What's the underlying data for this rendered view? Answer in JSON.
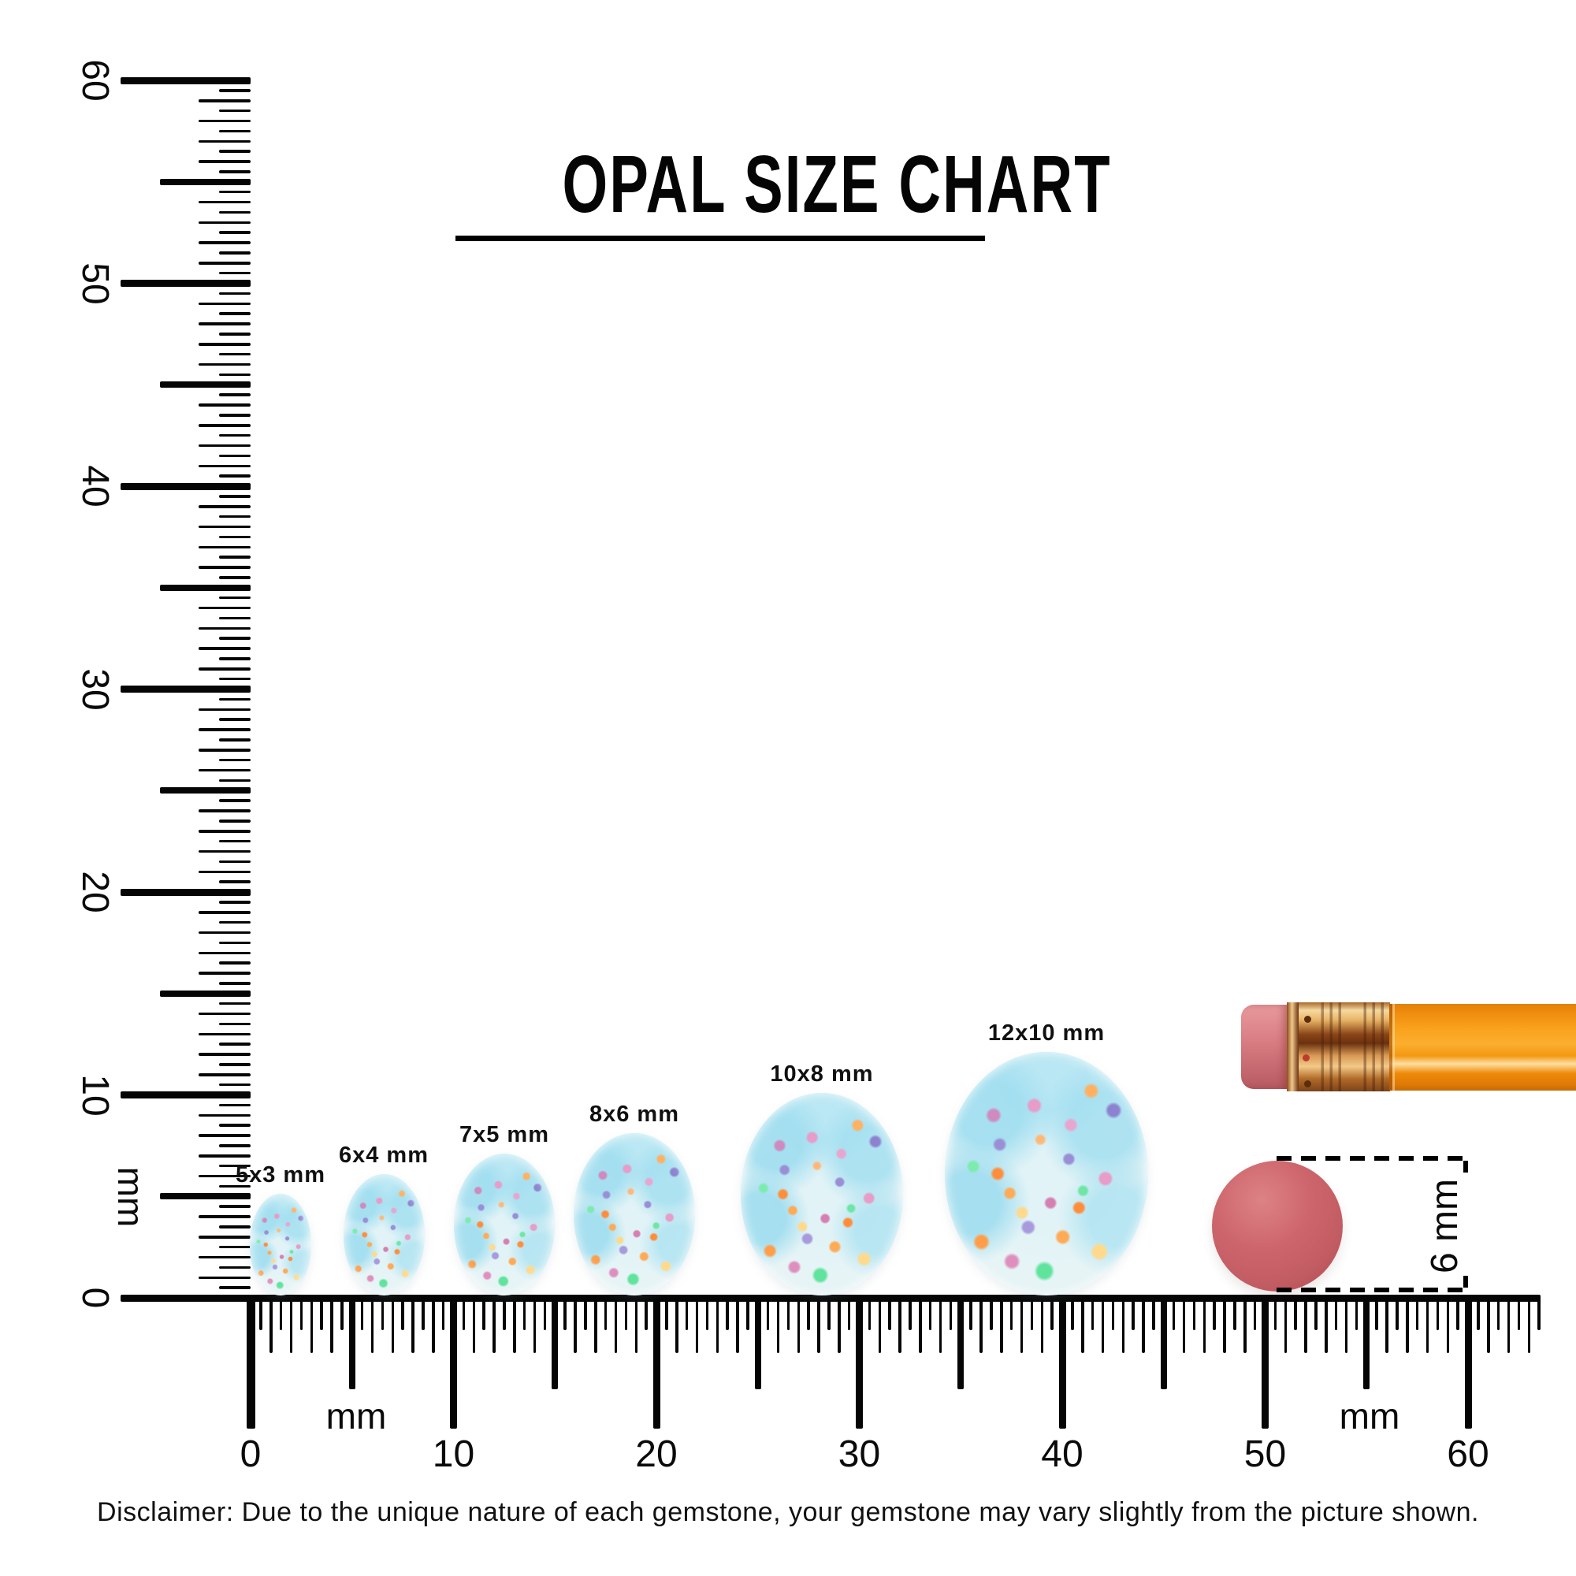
{
  "title": {
    "text": "OPAL SIZE CHART"
  },
  "rulers": {
    "px_per_mm_note": "scale shown by rulers",
    "vertical": {
      "unit": "mm",
      "min_mm": 0,
      "max_mm": 60,
      "minor_step_mm": 0.5,
      "half_step_mm": 5,
      "major_step_mm": 10,
      "labels": [
        "60",
        "50",
        "40",
        "30",
        "20",
        "10",
        "0"
      ]
    },
    "horizontal": {
      "unit_left": "mm",
      "unit_right": "mm",
      "min_mm": 0,
      "max_mm": 60,
      "overrun_mm": 3.5,
      "minor_step_mm": 0.5,
      "half_step_mm": 5,
      "major_step_mm": 10,
      "labels": [
        "0",
        "10",
        "20",
        "30",
        "40",
        "50",
        "60"
      ]
    }
  },
  "opals": [
    {
      "label": "5x3 mm",
      "w_mm": 3,
      "h_mm": 5
    },
    {
      "label": "6x4 mm",
      "w_mm": 4,
      "h_mm": 6
    },
    {
      "label": "7x5 mm",
      "w_mm": 5,
      "h_mm": 7
    },
    {
      "label": "8x6 mm",
      "w_mm": 6,
      "h_mm": 8
    },
    {
      "label": "10x8 mm",
      "w_mm": 8,
      "h_mm": 10
    },
    {
      "label": "12x10 mm",
      "w_mm": 10,
      "h_mm": 12
    }
  ],
  "size_reference": {
    "label": "6 mm"
  },
  "disclaimer": {
    "text": "Disclaimer: Due to the unique nature of each gemstone, your gemstone may vary slightly from the picture shown."
  },
  "colors": {
    "tick_black": "#050505",
    "pencil_orange": "#f9a11c",
    "ferrule_gold": "#e8b365",
    "eraser_pink": "#d87c82",
    "eraser_dot_red": "#cd666c",
    "opal_base": "#eef6f6",
    "opal_cyan_patch": "#a0def0",
    "opal_speckles": [
      "#ffaa55",
      "#e89cc8",
      "#9a8fd6",
      "#5fe39d",
      "#ffd98c"
    ]
  }
}
